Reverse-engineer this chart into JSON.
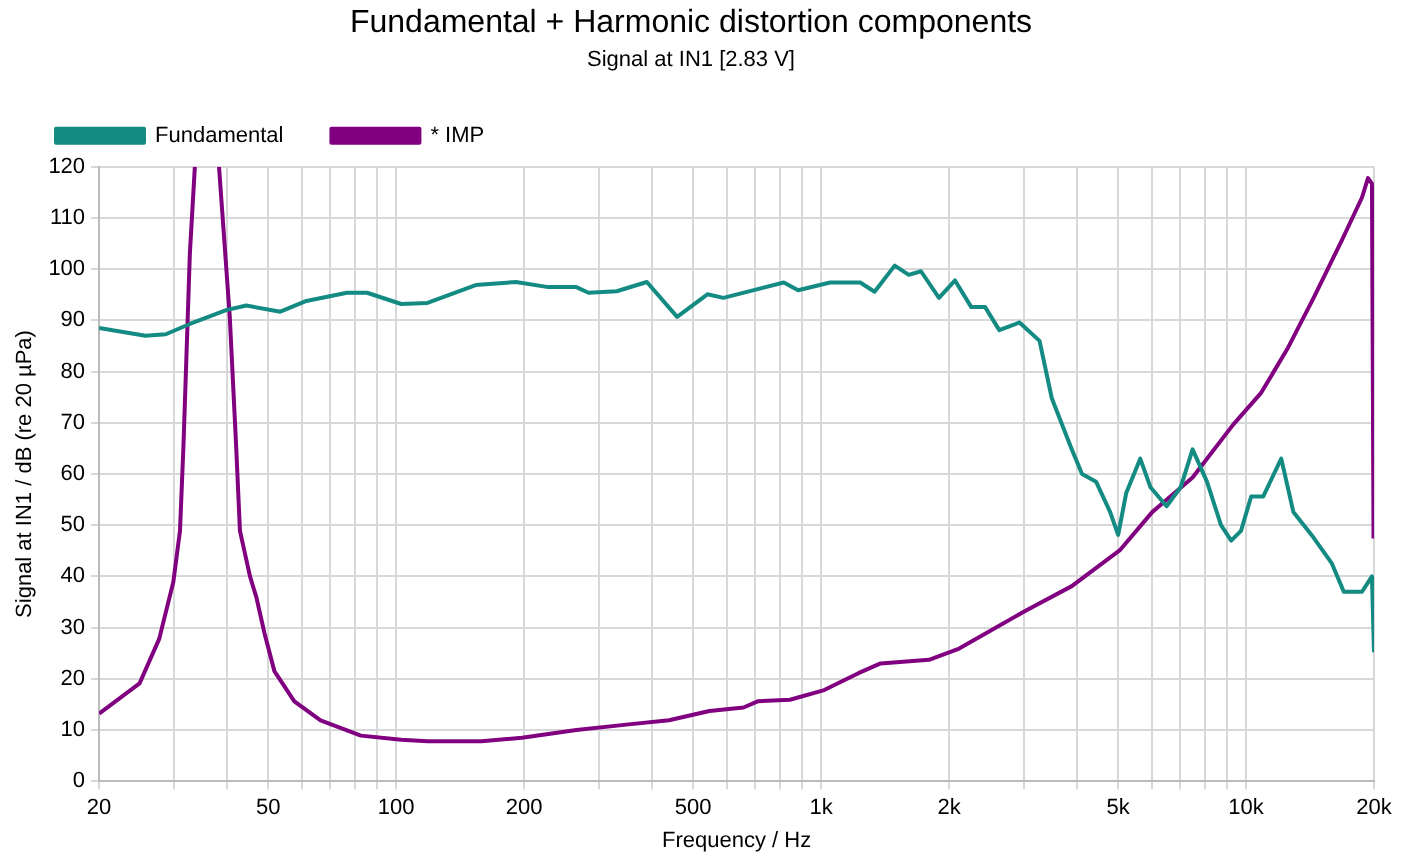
{
  "chart_data": {
    "type": "line",
    "title": "Fundamental + Harmonic distortion components",
    "subtitle": "Signal at IN1 [2.83 V]",
    "xlabel": "Frequency / Hz",
    "ylabel": "Signal at IN1 / dB (re 20 µPa)",
    "log": "x",
    "grid": true,
    "legend": "top left",
    "marker": "none",
    "line_style": "solid",
    "xlim": [
      20,
      20000
    ],
    "ylim": [
      0,
      120
    ],
    "xticks": [
      20,
      {
        "value": 30,
        "label": null
      },
      {
        "value": 40,
        "label": null
      },
      50,
      {
        "value": 60,
        "label": null
      },
      {
        "value": 70,
        "label": null
      },
      {
        "value": 80,
        "label": null
      },
      {
        "value": 90,
        "label": null
      },
      100,
      200,
      {
        "value": 300,
        "label": null
      },
      {
        "value": 400,
        "label": null
      },
      500,
      {
        "value": 600,
        "label": null
      },
      {
        "value": 700,
        "label": null
      },
      {
        "value": 800,
        "label": null
      },
      {
        "value": 900,
        "label": null
      },
      {
        "value": 1000,
        "label": "1k"
      },
      {
        "value": 2000,
        "label": "2k"
      },
      {
        "value": 3000,
        "label": null
      },
      {
        "value": 4000,
        "label": null
      },
      {
        "value": 5000,
        "label": "5k"
      },
      {
        "value": 6000,
        "label": null
      },
      {
        "value": 7000,
        "label": null
      },
      {
        "value": 8000,
        "label": null
      },
      {
        "value": 9000,
        "label": null
      },
      {
        "value": 10000,
        "label": "10k"
      },
      {
        "value": 20000,
        "label": "20k"
      }
    ],
    "yticks": [
      0,
      10,
      20,
      30,
      40,
      50,
      60,
      70,
      80,
      90,
      100,
      110,
      120
    ],
    "series": [
      {
        "name": "Fundamental",
        "color": "#138b83",
        "x": [
          20,
          25.7,
          28.7,
          32.7,
          39.8,
          44.4,
          53.4,
          61.5,
          76.6,
          85.4,
          102.8,
          118.5,
          153.9,
          191.4,
          228,
          265.5,
          283.6,
          330.4,
          389,
          458.3,
          540,
          589,
          817,
          883,
          1050,
          1236,
          1336,
          1490,
          1608,
          1718,
          1894,
          2066,
          2256,
          2432,
          2626,
          2930,
          3266,
          3490,
          3890,
          4112,
          4436,
          4786,
          5000,
          5224,
          5636,
          5958,
          6500,
          7016,
          7484,
          8090,
          8730,
          9226,
          9728,
          10280,
          10970,
          12100,
          12920,
          14260,
          15900,
          16980,
          18740,
          19780,
          20000
        ],
        "values": [
          88.5,
          87,
          87.3,
          89.3,
          92,
          92.9,
          91.7,
          93.8,
          95.4,
          95.4,
          93.2,
          93.4,
          96.9,
          97.5,
          96.5,
          96.5,
          95.4,
          95.7,
          97.5,
          90.7,
          95.1,
          94.4,
          97.4,
          95.9,
          97.4,
          97.4,
          95.6,
          100.7,
          98.9,
          99.6,
          94.4,
          97.8,
          92.6,
          92.6,
          88.1,
          89.6,
          86,
          74.8,
          64.8,
          60,
          58.5,
          52.6,
          48.1,
          56.3,
          63,
          57.4,
          53.7,
          57.4,
          64.8,
          58.5,
          50,
          47,
          48.9,
          55.6,
          55.6,
          63,
          52.6,
          48.1,
          42.6,
          37,
          37,
          40,
          25.2
        ]
      },
      {
        "name": "* IMP",
        "color": "#800080",
        "x": [
          20,
          24.9,
          27.7,
          29.9,
          31,
          31.6,
          32.7,
          33.6,
          36,
          38.3,
          40.6,
          42,
          42.9,
          45.3,
          46.9,
          49,
          51.7,
          57.6,
          66.4,
          82.6,
          102.8,
          118.5,
          158.9,
          197.8,
          265.5,
          352.6,
          438.6,
          546,
          657,
          709,
          845,
          1017,
          1224,
          1380,
          1794,
          2113,
          3028,
          3890,
          5058,
          6020,
          7484,
          9315,
          10860,
          12500,
          14420,
          16790,
          18740,
          19360,
          19780,
          19950
        ],
        "values": [
          13.2,
          19.1,
          27.8,
          38.9,
          48.9,
          65.9,
          103,
          120,
          null,
          120,
          90.7,
          65.9,
          48.9,
          40,
          35.9,
          28.9,
          21.5,
          15.6,
          11.9,
          8.9,
          8.1,
          7.8,
          7.8,
          8.5,
          10,
          11.1,
          11.9,
          13.7,
          14.4,
          15.6,
          15.9,
          17.8,
          21.1,
          23,
          23.7,
          25.9,
          33.3,
          38.1,
          45.2,
          52.6,
          59.3,
          69.6,
          75.9,
          84.4,
          94.4,
          105.6,
          114,
          117.8,
          116.7,
          47.4
        ]
      }
    ]
  }
}
